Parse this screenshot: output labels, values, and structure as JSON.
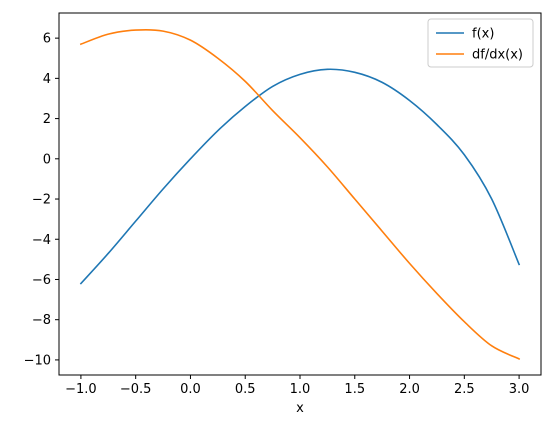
{
  "chart_data": {
    "type": "line",
    "title": "",
    "xlabel": "x",
    "ylabel": "",
    "xlim": [
      -1.2,
      3.2
    ],
    "ylim": [
      -10.75,
      7.25
    ],
    "xticks": [
      -1.0,
      -0.5,
      0.0,
      0.5,
      1.0,
      1.5,
      2.0,
      2.5,
      3.0
    ],
    "xtick_labels": [
      "−1.0",
      "−0.5",
      "0.0",
      "0.5",
      "1.0",
      "1.5",
      "2.0",
      "2.5",
      "3.0"
    ],
    "yticks": [
      -10,
      -8,
      -6,
      -4,
      -2,
      0,
      2,
      4,
      6
    ],
    "ytick_labels": [
      "−10",
      "−8",
      "−6",
      "−4",
      "−2",
      "0",
      "2",
      "4",
      "6"
    ],
    "grid": false,
    "legend": "top-right",
    "x": [
      -1.0,
      -0.75,
      -0.5,
      -0.25,
      0.0,
      0.25,
      0.5,
      0.75,
      1.0,
      1.25,
      1.5,
      1.75,
      2.0,
      2.25,
      2.5,
      2.75,
      3.0
    ],
    "series": [
      {
        "name": "f(x)",
        "color": "#1f77b4",
        "values": [
          -6.2,
          -4.7,
          -3.1,
          -1.5,
          0.0,
          1.4,
          2.6,
          3.6,
          4.2,
          4.45,
          4.3,
          3.8,
          2.9,
          1.7,
          0.2,
          -2.0,
          -5.25
        ]
      },
      {
        "name": "df/dx(x)",
        "color": "#ff7f0e",
        "values": [
          5.7,
          6.2,
          6.4,
          6.35,
          5.9,
          5.0,
          3.85,
          2.4,
          1.05,
          -0.4,
          -2.0,
          -3.6,
          -5.2,
          -6.7,
          -8.1,
          -9.3,
          -9.95
        ]
      }
    ]
  }
}
